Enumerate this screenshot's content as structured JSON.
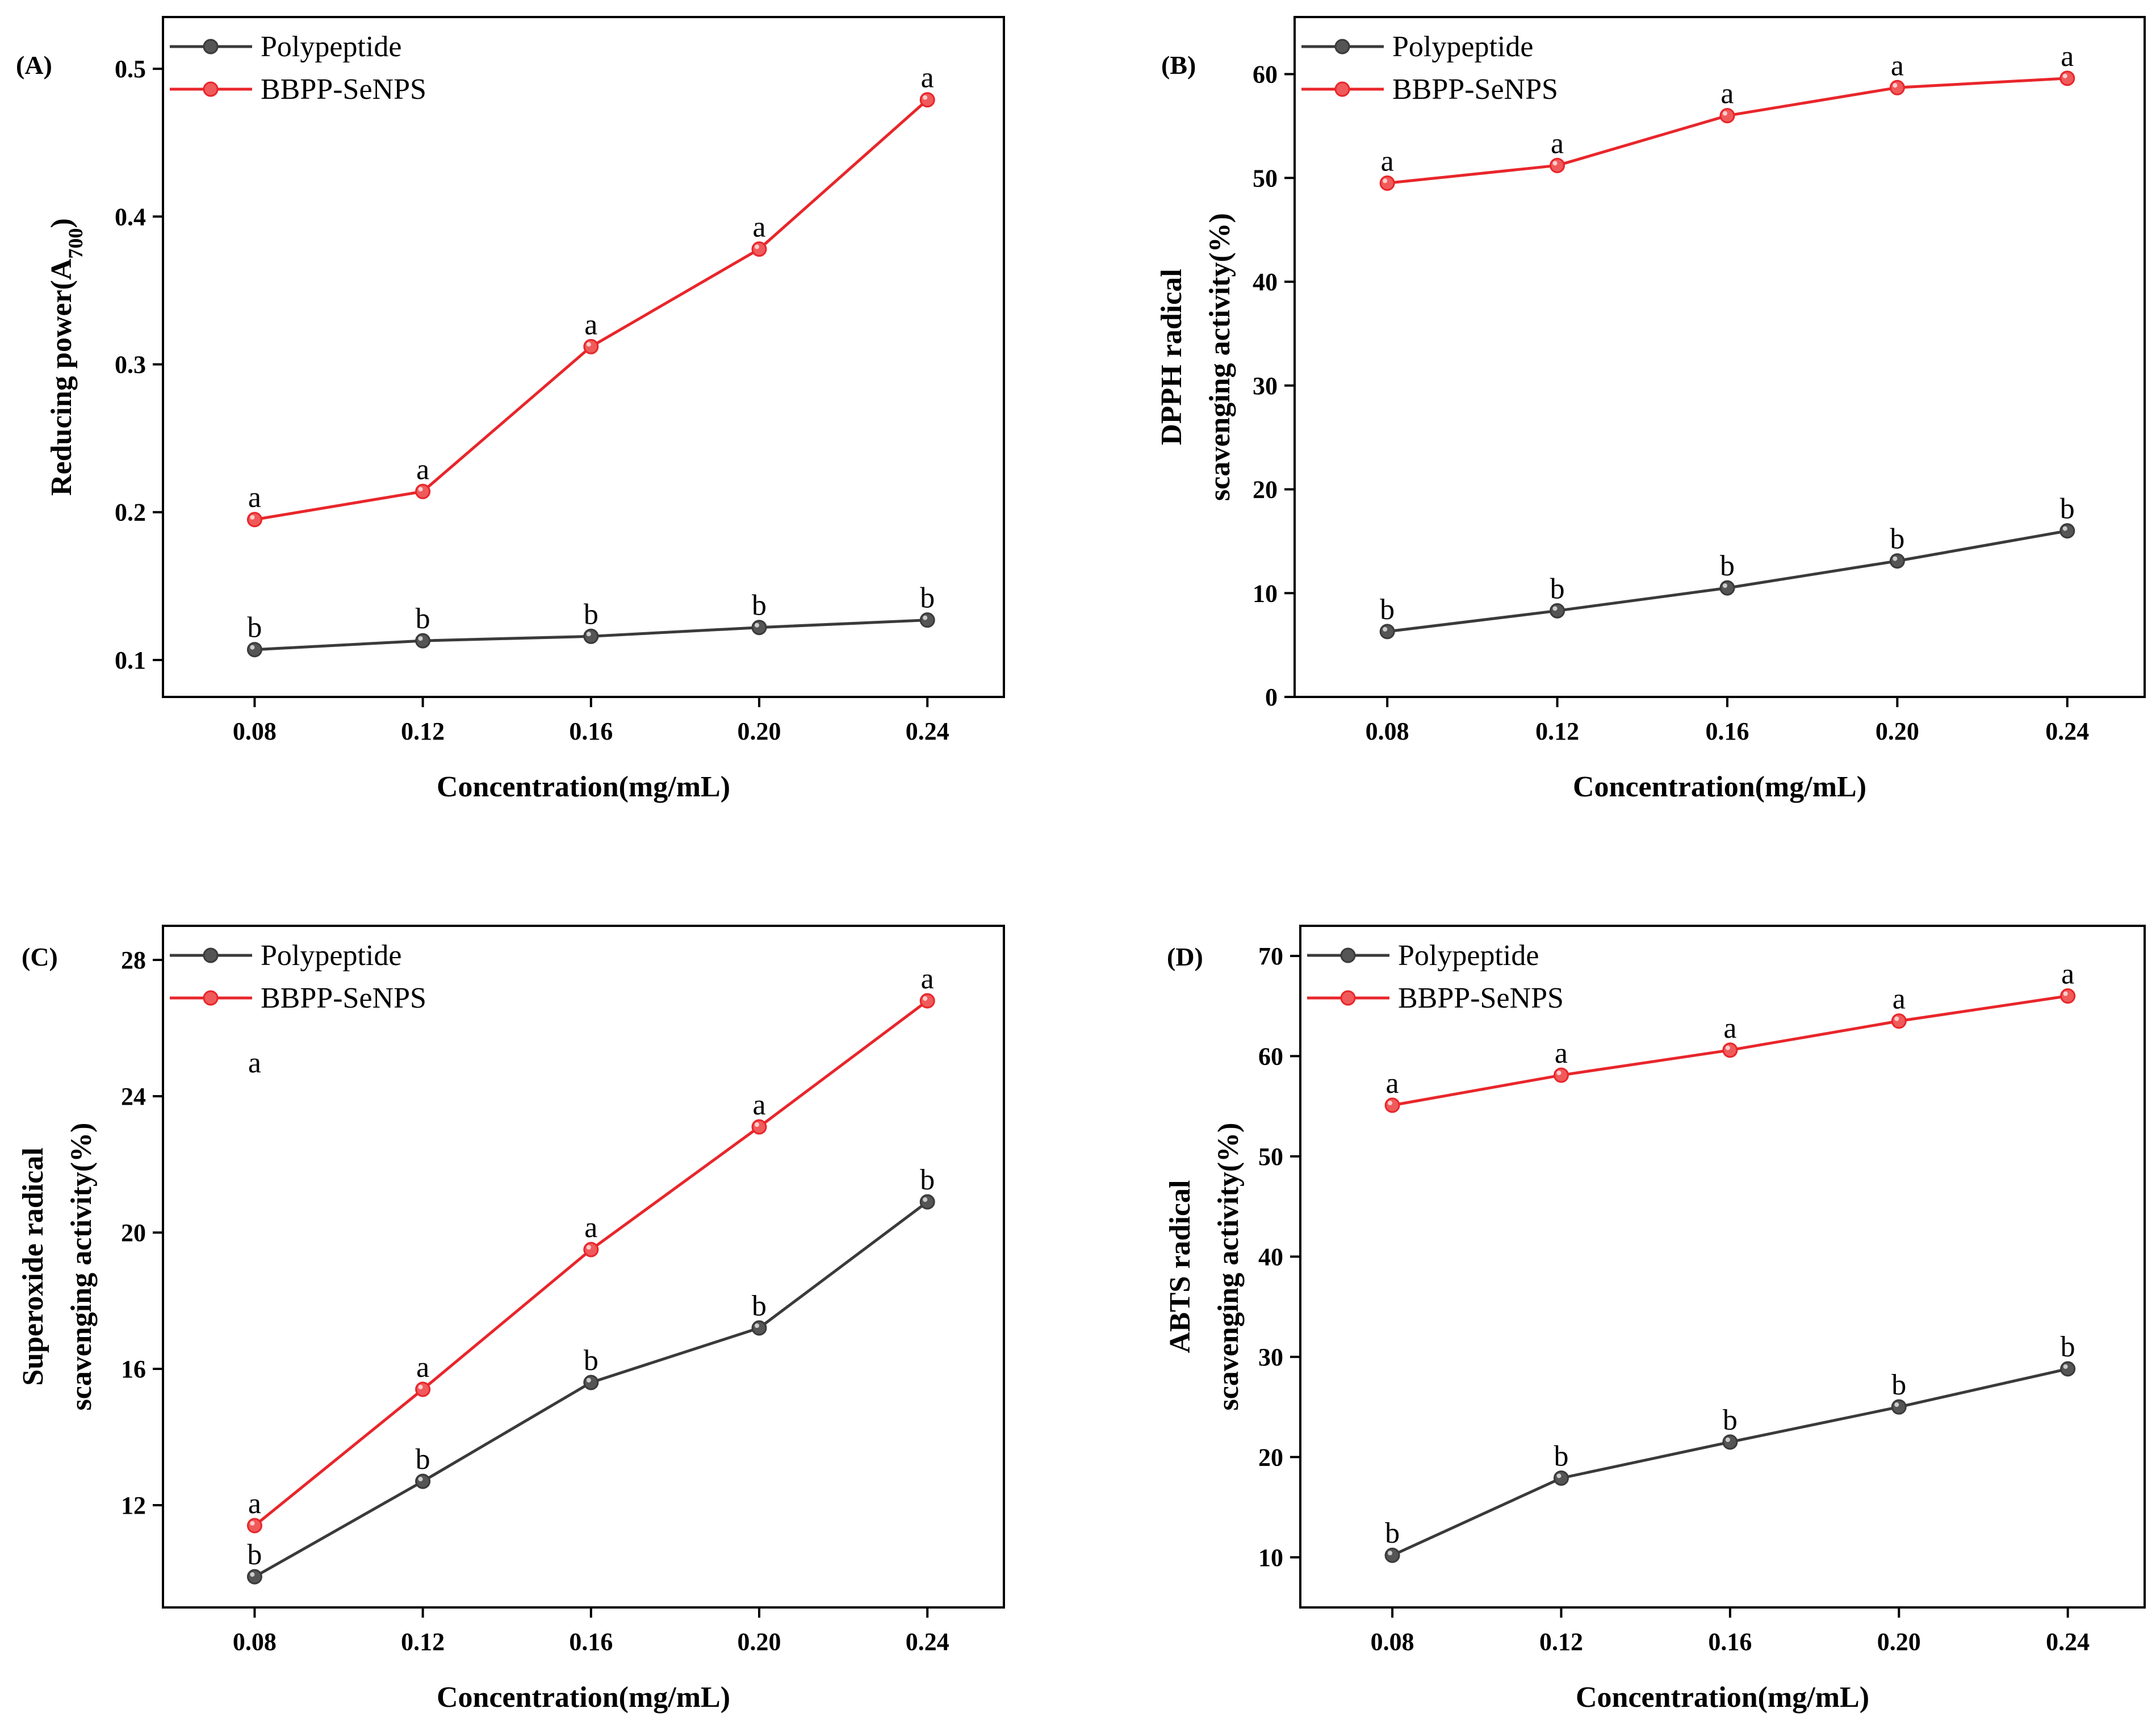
{
  "colors": {
    "polypeptide": "#3a3a3a",
    "bbpp": "#e8262b",
    "polypeptide_marker": "#555555",
    "bbpp_marker": "#f05a5a",
    "axis": "#000000"
  },
  "chart_data": [
    {
      "id": "A",
      "panel_label": "(A)",
      "type": "line",
      "title": "",
      "xlabel": "Concentration(mg/mL)",
      "ylabel_lines": [
        "Reducing power(A",
        "700",
        ")"
      ],
      "ylabel_is_subscript": true,
      "categories": [
        "0.08",
        "0.12",
        "0.16",
        "0.20",
        "0.24"
      ],
      "ylim": [
        0.075,
        0.535
      ],
      "yticks": [
        0.1,
        0.2,
        0.3,
        0.4,
        0.5
      ],
      "ytick_labels": [
        "0.1",
        "0.2",
        "0.3",
        "0.4",
        "0.5"
      ],
      "legend": "top-left",
      "series": [
        {
          "name": "Polypeptide",
          "color_key": "polypeptide",
          "values": [
            0.107,
            0.113,
            0.116,
            0.122,
            0.127
          ],
          "labels": [
            "b",
            "b",
            "b",
            "b",
            "b"
          ]
        },
        {
          "name": "BBPP-SeNPS",
          "color_key": "bbpp",
          "values": [
            0.195,
            0.214,
            0.312,
            0.378,
            0.479
          ],
          "labels": [
            "a",
            "a",
            "a",
            "a",
            "a"
          ]
        }
      ],
      "extra_labels": []
    },
    {
      "id": "B",
      "panel_label": "(B)",
      "type": "line",
      "title": "",
      "xlabel": "Concentration(mg/mL)",
      "ylabel_lines": [
        "DPPH radical",
        "scavenging activity(%)"
      ],
      "ylabel_is_subscript": false,
      "categories": [
        "0.08",
        "0.12",
        "0.16",
        "0.20",
        "0.24"
      ],
      "ylim": [
        0,
        65.5
      ],
      "yticks": [
        0,
        10,
        20,
        30,
        40,
        50,
        60
      ],
      "ytick_labels": [
        "0",
        "10",
        "20",
        "30",
        "40",
        "50",
        "60"
      ],
      "legend": "top-left",
      "series": [
        {
          "name": "Polypeptide",
          "color_key": "polypeptide",
          "values": [
            6.3,
            8.3,
            10.5,
            13.1,
            16.0
          ],
          "labels": [
            "b",
            "b",
            "b",
            "b",
            "b"
          ]
        },
        {
          "name": "BBPP-SeNPS",
          "color_key": "bbpp",
          "values": [
            49.5,
            51.2,
            56.0,
            58.7,
            59.6
          ],
          "labels": [
            "a",
            "a",
            "a",
            "a",
            "a"
          ]
        }
      ],
      "extra_labels": []
    },
    {
      "id": "C",
      "panel_label": "(C)",
      "type": "line",
      "title": "",
      "xlabel": "Concentration(mg/mL)",
      "ylabel_lines": [
        "Superoxide radical",
        "scavenging activity(%)"
      ],
      "ylabel_is_subscript": false,
      "categories": [
        "0.08",
        "0.12",
        "0.16",
        "0.20",
        "0.24"
      ],
      "ylim": [
        9.0,
        29.0
      ],
      "yticks": [
        12,
        16,
        20,
        24,
        28
      ],
      "ytick_labels": [
        "12",
        "16",
        "20",
        "24",
        "28"
      ],
      "legend": "top-left",
      "series": [
        {
          "name": "Polypeptide",
          "color_key": "polypeptide",
          "values": [
            9.9,
            12.7,
            15.6,
            17.2,
            20.9
          ],
          "labels": [
            "b",
            "b",
            "b",
            "b",
            "b"
          ]
        },
        {
          "name": "BBPP-SeNPS",
          "color_key": "bbpp",
          "values": [
            11.4,
            15.4,
            19.5,
            23.1,
            26.8
          ],
          "labels": [
            "a",
            "a",
            "a",
            "a",
            "a"
          ]
        }
      ],
      "extra_labels": [
        {
          "text": "a",
          "x_index": 0,
          "y": 25.0
        }
      ]
    },
    {
      "id": "D",
      "panel_label": "(D)",
      "type": "line",
      "title": "",
      "xlabel": "Concentration(mg/mL)",
      "ylabel_lines": [
        "ABTS radical",
        "scavenging activity(%)"
      ],
      "ylabel_is_subscript": false,
      "categories": [
        "0.08",
        "0.12",
        "0.16",
        "0.20",
        "0.24"
      ],
      "ylim": [
        5,
        73
      ],
      "yticks": [
        10,
        20,
        30,
        40,
        50,
        60,
        70
      ],
      "ytick_labels": [
        "10",
        "20",
        "30",
        "40",
        "50",
        "60",
        "70"
      ],
      "legend": "top-left",
      "series": [
        {
          "name": "Polypeptide",
          "color_key": "polypeptide",
          "values": [
            10.2,
            17.9,
            21.5,
            25.0,
            28.8
          ],
          "labels": [
            "b",
            "b",
            "b",
            "b",
            "b"
          ]
        },
        {
          "name": "BBPP-SeNPS",
          "color_key": "bbpp",
          "values": [
            55.1,
            58.1,
            60.6,
            63.5,
            66.0
          ],
          "labels": [
            "a",
            "a",
            "a",
            "a",
            "a"
          ]
        }
      ],
      "extra_labels": []
    }
  ]
}
